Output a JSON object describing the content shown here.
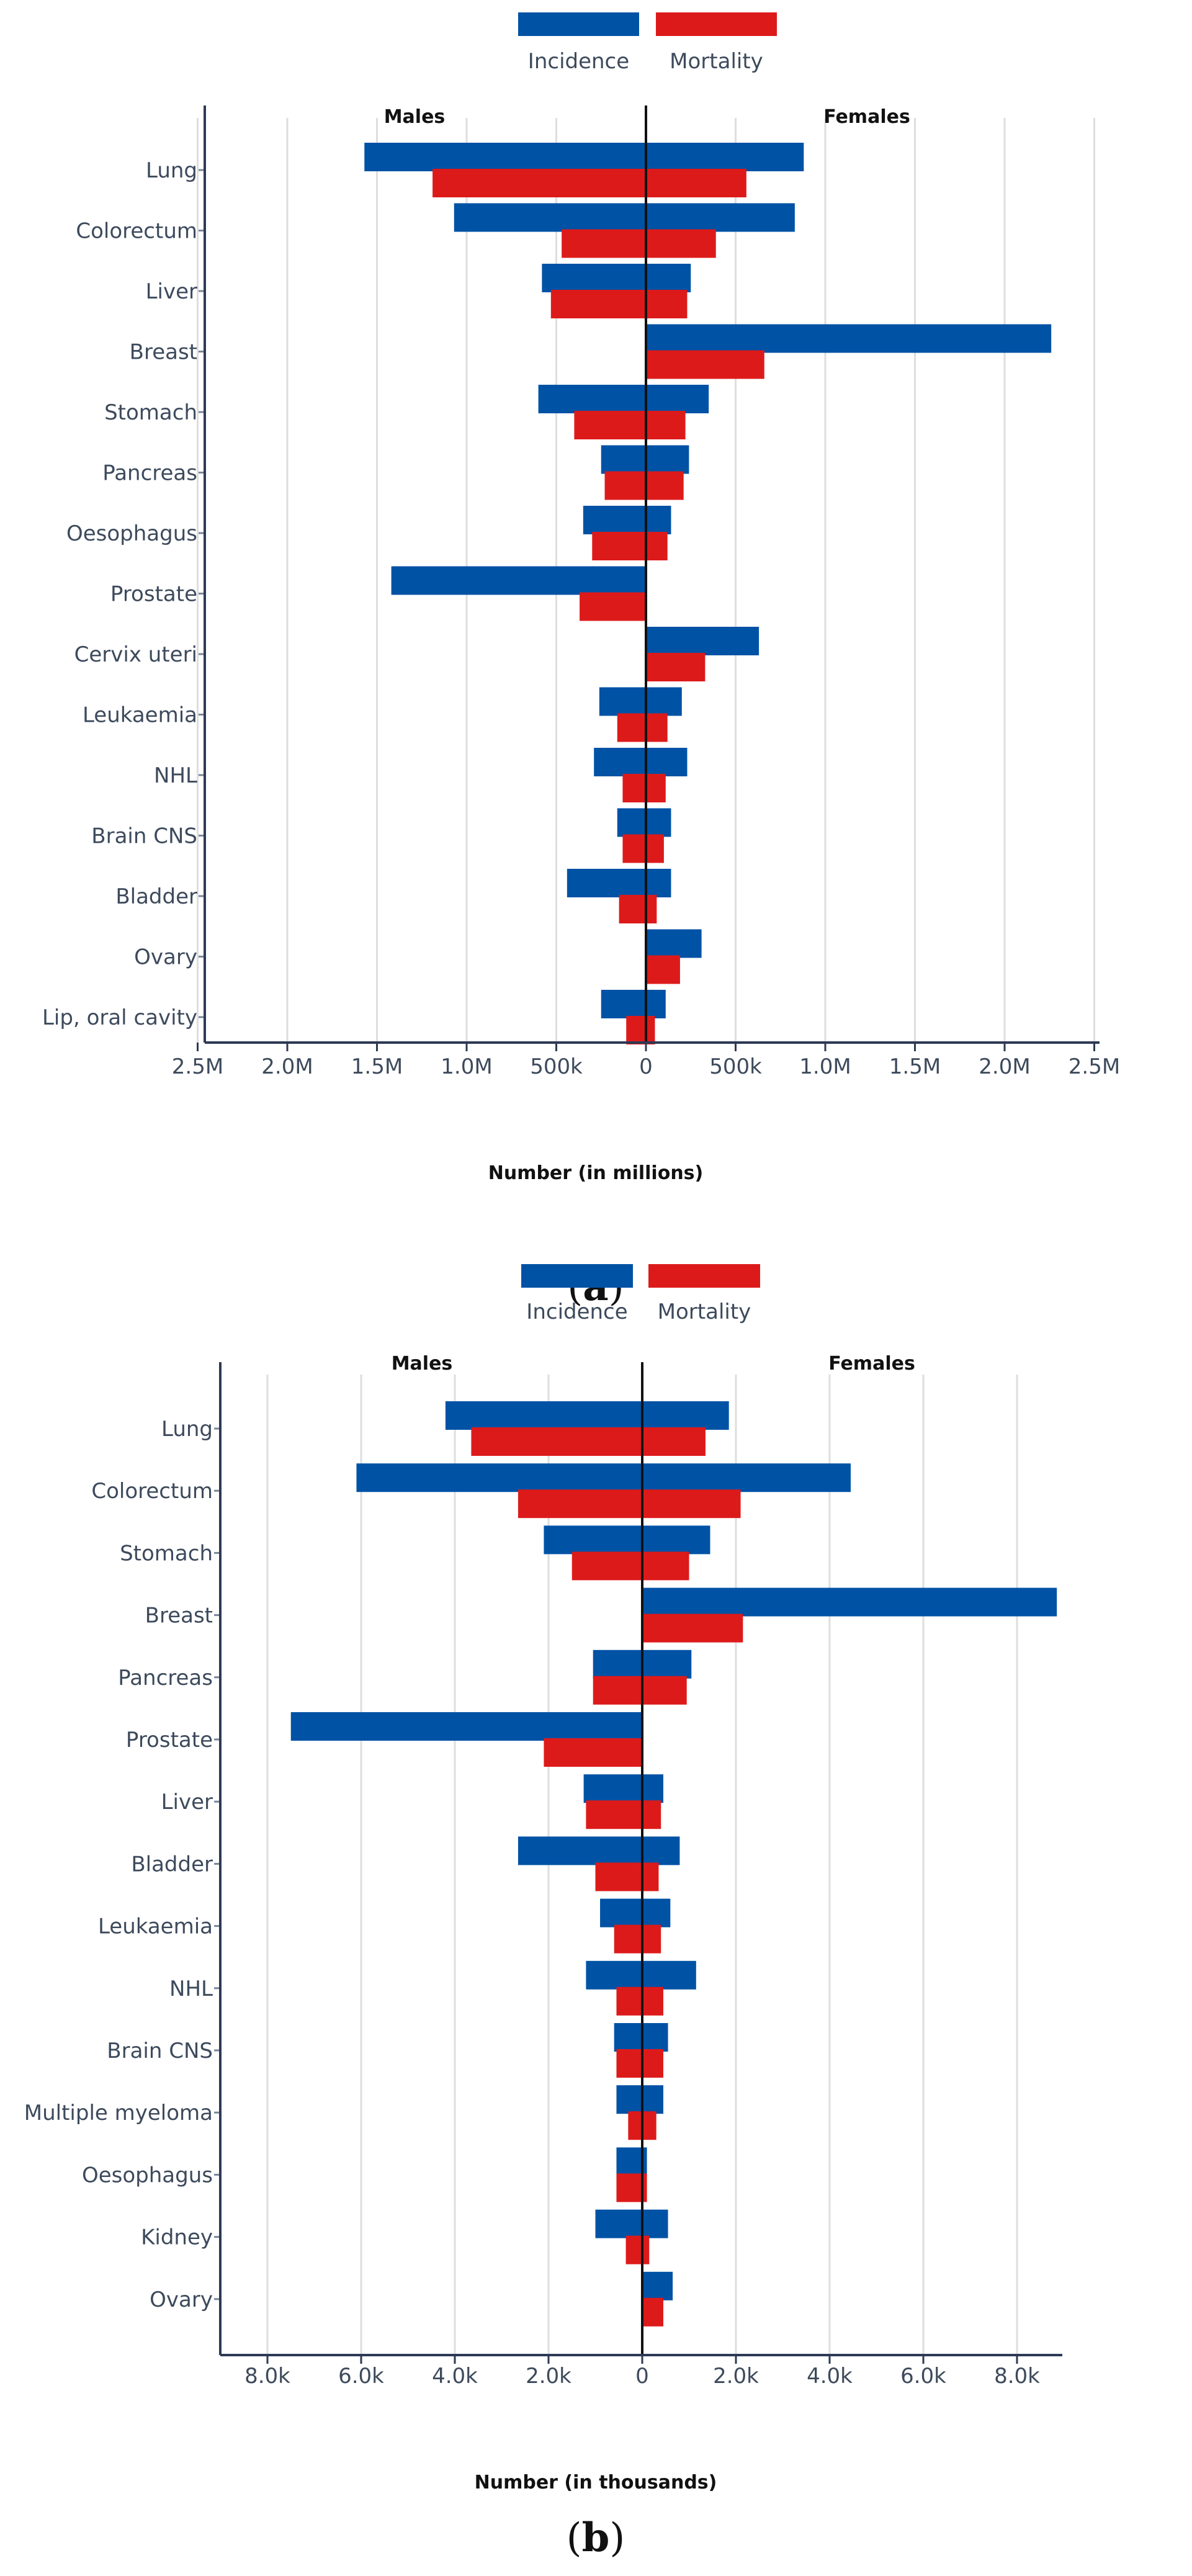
{
  "chart_data": [
    {
      "type": "bar",
      "orientation": "horizontal-butterfly",
      "panel_caption": {
        "open": "(",
        "letter": "a",
        "close": ")"
      },
      "legend": [
        "Incidence",
        "Mortality"
      ],
      "left_group": "Males",
      "right_group": "Females",
      "xlabel": "Number (in millions)",
      "xlim": [
        -2.5,
        2.5
      ],
      "xticks": [
        -2.5,
        -2.0,
        -1.5,
        -1.0,
        -0.5,
        0,
        0.5,
        1.0,
        1.5,
        2.0,
        2.5
      ],
      "xtick_labels": [
        "2.5M",
        "2.0M",
        "1.5M",
        "1.0M",
        "500k",
        "0",
        "500k",
        "1.0M",
        "1.5M",
        "2.0M",
        "2.5M"
      ],
      "categories": [
        "Lung",
        "Colorectum",
        "Liver",
        "Breast",
        "Stomach",
        "Pancreas",
        "Oesophagus",
        "Prostate",
        "Cervix uteri",
        "Leukaemia",
        "NHL",
        "Brain CNS",
        "Bladder",
        "Ovary",
        "Lip, oral cavity"
      ],
      "series": [
        {
          "name": "Incidence",
          "group": "Males",
          "color": "#0052a5",
          "values": [
            1.57,
            1.07,
            0.58,
            0,
            0.6,
            0.25,
            0.35,
            1.42,
            0,
            0.26,
            0.29,
            0.16,
            0.44,
            0,
            0.25
          ]
        },
        {
          "name": "Mortality",
          "group": "Males",
          "color": "#dd1a1a",
          "values": [
            1.19,
            0.47,
            0.53,
            0,
            0.4,
            0.23,
            0.3,
            0.37,
            0,
            0.16,
            0.13,
            0.13,
            0.15,
            0,
            0.11
          ]
        },
        {
          "name": "Incidence",
          "group": "Females",
          "color": "#0052a5",
          "values": [
            0.88,
            0.83,
            0.25,
            2.26,
            0.35,
            0.24,
            0.14,
            0,
            0.63,
            0.2,
            0.23,
            0.14,
            0.14,
            0.31,
            0.11
          ]
        },
        {
          "name": "Mortality",
          "group": "Females",
          "color": "#dd1a1a",
          "values": [
            0.56,
            0.39,
            0.23,
            0.66,
            0.22,
            0.21,
            0.12,
            0,
            0.33,
            0.12,
            0.11,
            0.1,
            0.06,
            0.19,
            0.05
          ]
        }
      ]
    },
    {
      "type": "bar",
      "orientation": "horizontal-butterfly",
      "panel_caption": {
        "open": "(",
        "letter": "b",
        "close": ")"
      },
      "legend": [
        "Incidence",
        "Mortality"
      ],
      "left_group": "Males",
      "right_group": "Females",
      "xlabel": "Number (in thousands)",
      "xlim": [
        -9.0,
        9.0
      ],
      "xticks": [
        -8,
        -6,
        -4,
        -2,
        0,
        2,
        4,
        6,
        8
      ],
      "xtick_labels": [
        "8.0k",
        "6.0k",
        "4.0k",
        "2.0k",
        "0",
        "2.0k",
        "4.0k",
        "6.0k",
        "8.0k"
      ],
      "categories": [
        "Lung",
        "Colorectum",
        "Stomach",
        "Breast",
        "Pancreas",
        "Prostate",
        "Liver",
        "Bladder",
        "Leukaemia",
        "NHL",
        "Brain CNS",
        "Multiple myeloma",
        "Oesophagus",
        "Kidney",
        "Ovary"
      ],
      "series": [
        {
          "name": "Incidence",
          "group": "Males",
          "color": "#0052a5",
          "values": [
            4.2,
            6.1,
            2.1,
            0,
            1.05,
            7.5,
            1.25,
            2.65,
            0.9,
            1.2,
            0.6,
            0.55,
            0.55,
            1.0,
            0
          ]
        },
        {
          "name": "Mortality",
          "group": "Males",
          "color": "#dd1a1a",
          "values": [
            3.65,
            2.65,
            1.5,
            0,
            1.05,
            2.1,
            1.2,
            1.0,
            0.6,
            0.55,
            0.55,
            0.3,
            0.55,
            0.35,
            0
          ]
        },
        {
          "name": "Incidence",
          "group": "Females",
          "color": "#0052a5",
          "values": [
            1.85,
            4.45,
            1.45,
            8.85,
            1.05,
            0,
            0.45,
            0.8,
            0.6,
            1.15,
            0.55,
            0.45,
            0.1,
            0.55,
            0.65
          ]
        },
        {
          "name": "Mortality",
          "group": "Females",
          "color": "#dd1a1a",
          "values": [
            1.35,
            2.1,
            1.0,
            2.15,
            0.95,
            0,
            0.4,
            0.35,
            0.4,
            0.45,
            0.45,
            0.3,
            0.1,
            0.15,
            0.45
          ]
        }
      ]
    }
  ]
}
